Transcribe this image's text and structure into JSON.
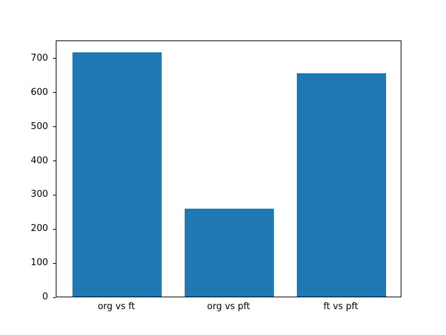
{
  "chart_data": {
    "type": "bar",
    "title": "",
    "xlabel": "",
    "ylabel": "",
    "categories": [
      "org vs ft",
      "org vs pft",
      "ft vs pft"
    ],
    "values": [
      717,
      257,
      655
    ],
    "ylim": [
      0,
      753
    ],
    "yticks": [
      0,
      100,
      200,
      300,
      400,
      500,
      600,
      700
    ],
    "grid": false,
    "legend": "none",
    "bar_color": "#1f77b4"
  }
}
